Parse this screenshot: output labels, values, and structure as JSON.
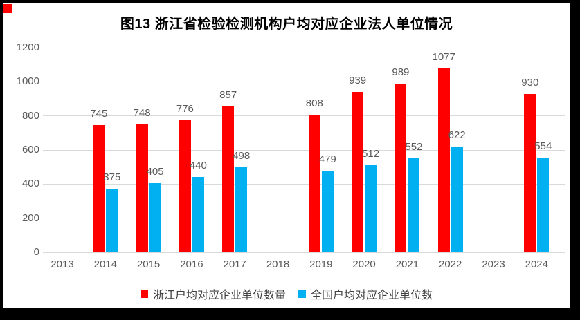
{
  "title": "图13 浙江省检验检测机构户均对应企业法人单位情况",
  "frame": {
    "border_color": "#000000",
    "corner_marker_color": "#ff0000"
  },
  "chart_data": {
    "type": "bar",
    "categories": [
      "2013",
      "2014",
      "2015",
      "2016",
      "2017",
      "2018",
      "2019",
      "2020",
      "2021",
      "2022",
      "2023",
      "2024"
    ],
    "series": [
      {
        "name": "浙江户均对应企业单位数量",
        "color": "#ff0000",
        "values": [
          null,
          745,
          748,
          776,
          857,
          null,
          808,
          939,
          989,
          1077,
          null,
          930
        ]
      },
      {
        "name": "全国户均对应企业单位数",
        "color": "#00b0f0",
        "values": [
          null,
          375,
          405,
          440,
          498,
          null,
          479,
          512,
          552,
          622,
          null,
          554
        ]
      }
    ],
    "title": "图13 浙江省检验检测机构户均对应企业法人单位情况",
    "xlabel": "",
    "ylabel": "",
    "ylim": [
      0,
      1200
    ],
    "yticks": [
      0,
      200,
      400,
      600,
      800,
      1000,
      1200
    ],
    "grid": "horizontal",
    "grid_color": "#d9d9d9",
    "tick_label_color": "#595959",
    "value_label_color": "#595959",
    "legend_position": "bottom",
    "value_labels": true
  }
}
